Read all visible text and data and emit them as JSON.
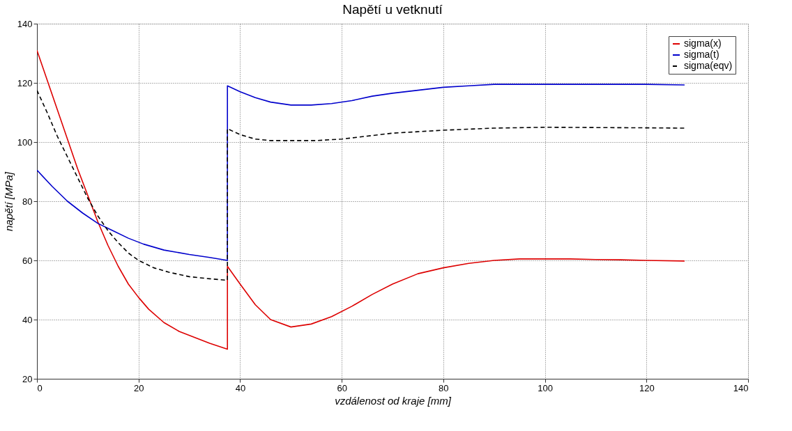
{
  "chart_data": {
    "type": "line",
    "title": "Napětí u vetknutí",
    "xlabel": "vzdálenost od kraje [mm]",
    "ylabel": "napětí [MPa]",
    "xlim": [
      0,
      140
    ],
    "xticks": [
      0,
      20,
      40,
      60,
      80,
      100,
      120,
      140
    ],
    "ylim": [
      20,
      140
    ],
    "yticks": [
      20,
      40,
      60,
      80,
      100,
      120,
      140
    ],
    "grid": true,
    "legend": "top right",
    "series": [
      {
        "name": "sigma(x)",
        "color": "#dd0000",
        "line_style": "solid",
        "x": [
          0,
          2,
          4,
          6,
          8,
          10,
          12,
          14,
          16,
          18,
          20,
          22,
          25,
          28,
          31,
          34,
          37.5,
          37.5,
          40,
          43,
          46,
          50,
          54,
          58,
          62,
          66,
          70,
          75,
          80,
          85,
          90,
          95,
          100,
          105,
          110,
          115,
          120,
          127.5
        ],
        "values": [
          131,
          121,
          111,
          101,
          91,
          82,
          73,
          65,
          58,
          52,
          47.5,
          43.5,
          39,
          36,
          34,
          32,
          30,
          58,
          52,
          45,
          40,
          37.5,
          38.5,
          41,
          44.5,
          48.5,
          52,
          55.5,
          57.5,
          59,
          60,
          60.5,
          60.5,
          60.5,
          60.3,
          60.2,
          60,
          59.8
        ]
      },
      {
        "name": "sigma(t)",
        "color": "#0000cc",
        "line_style": "solid",
        "x": [
          0,
          3,
          6,
          9,
          12,
          15,
          18,
          21,
          25,
          30,
          34,
          37.5,
          37.5,
          40,
          43,
          46,
          50,
          54,
          58,
          62,
          66,
          70,
          75,
          80,
          85,
          90,
          100,
          110,
          120,
          127.5
        ],
        "values": [
          90.5,
          85,
          80,
          76,
          72.5,
          70,
          67.5,
          65.5,
          63.5,
          62,
          61,
          60,
          119,
          117,
          115,
          113.5,
          112.5,
          112.5,
          113,
          114,
          115.5,
          116.5,
          117.5,
          118.5,
          119,
          119.5,
          119.5,
          119.5,
          119.5,
          119.3
        ]
      },
      {
        "name": "sigma(eqv)",
        "color": "#000000",
        "line_style": "dashed",
        "x": [
          0,
          2,
          4,
          6,
          8,
          10,
          12,
          14,
          16,
          18,
          20,
          23,
          26,
          30,
          34,
          37.5,
          37.5,
          40,
          43,
          46,
          50,
          55,
          60,
          65,
          70,
          75,
          80,
          90,
          100,
          110,
          120,
          127.5
        ],
        "values": [
          117.5,
          110,
          102,
          95,
          88,
          81,
          75,
          70,
          66,
          62.5,
          60,
          57.5,
          56,
          54.5,
          53.8,
          53.3,
          104.5,
          102.5,
          101,
          100.5,
          100.5,
          100.5,
          101,
          102,
          103,
          103.5,
          104,
          104.7,
          105,
          104.9,
          104.8,
          104.7
        ]
      }
    ]
  }
}
